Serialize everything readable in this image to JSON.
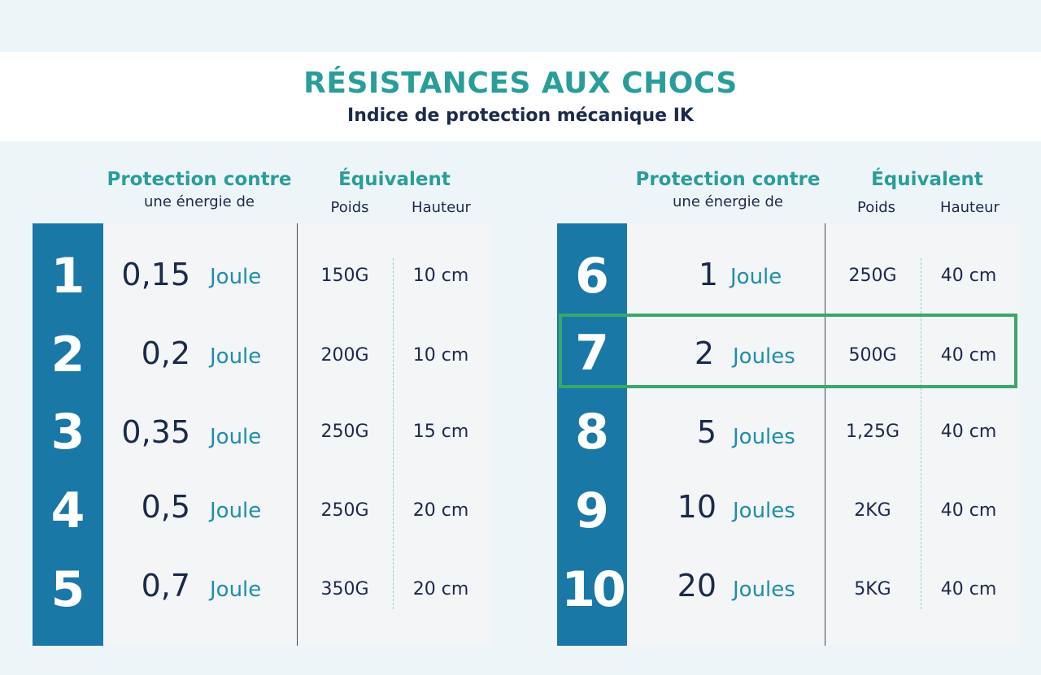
{
  "title": "RÉSISTANCES AUX CHOCS",
  "subtitle": "Indice de protection mécanique IK",
  "headers": {
    "protection": "Protection contre",
    "energy": "une énergie de",
    "equivalent": "Équivalent",
    "weight": "Poids",
    "height": "Hauteur"
  },
  "left_rows": [
    {
      "ik": "1",
      "value": "0,15",
      "unit": "Joule",
      "weight": "150G",
      "height": "10 cm"
    },
    {
      "ik": "2",
      "value": "0,2",
      "unit": "Joule",
      "weight": "200G",
      "height": "10 cm"
    },
    {
      "ik": "3",
      "value": "0,35",
      "unit": "Joule",
      "weight": "250G",
      "height": "15 cm"
    },
    {
      "ik": "4",
      "value": "0,5",
      "unit": "Joule",
      "weight": "250G",
      "height": "20 cm"
    },
    {
      "ik": "5",
      "value": "0,7",
      "unit": "Joule",
      "weight": "350G",
      "height": "20 cm"
    }
  ],
  "right_rows": [
    {
      "ik": "6",
      "value": "1",
      "unit": "Joule",
      "weight": "250G",
      "height": "40 cm"
    },
    {
      "ik": "7",
      "value": "2",
      "unit": "Joules",
      "weight": "500G",
      "height": "40 cm",
      "highlighted": true
    },
    {
      "ik": "8",
      "value": "5",
      "unit": "Joules",
      "weight": "1,25G",
      "height": "40 cm"
    },
    {
      "ik": "9",
      "value": "10",
      "unit": "Joules",
      "weight": "2KG",
      "height": "40 cm"
    },
    {
      "ik": "10",
      "value": "20",
      "unit": "Joules",
      "weight": "5KG",
      "height": "40 cm"
    }
  ],
  "colors": {
    "accent": "#2a9d9a",
    "strip": "#1a78a6",
    "highlight": "#3aa86a",
    "text": "#1b2a4a"
  }
}
